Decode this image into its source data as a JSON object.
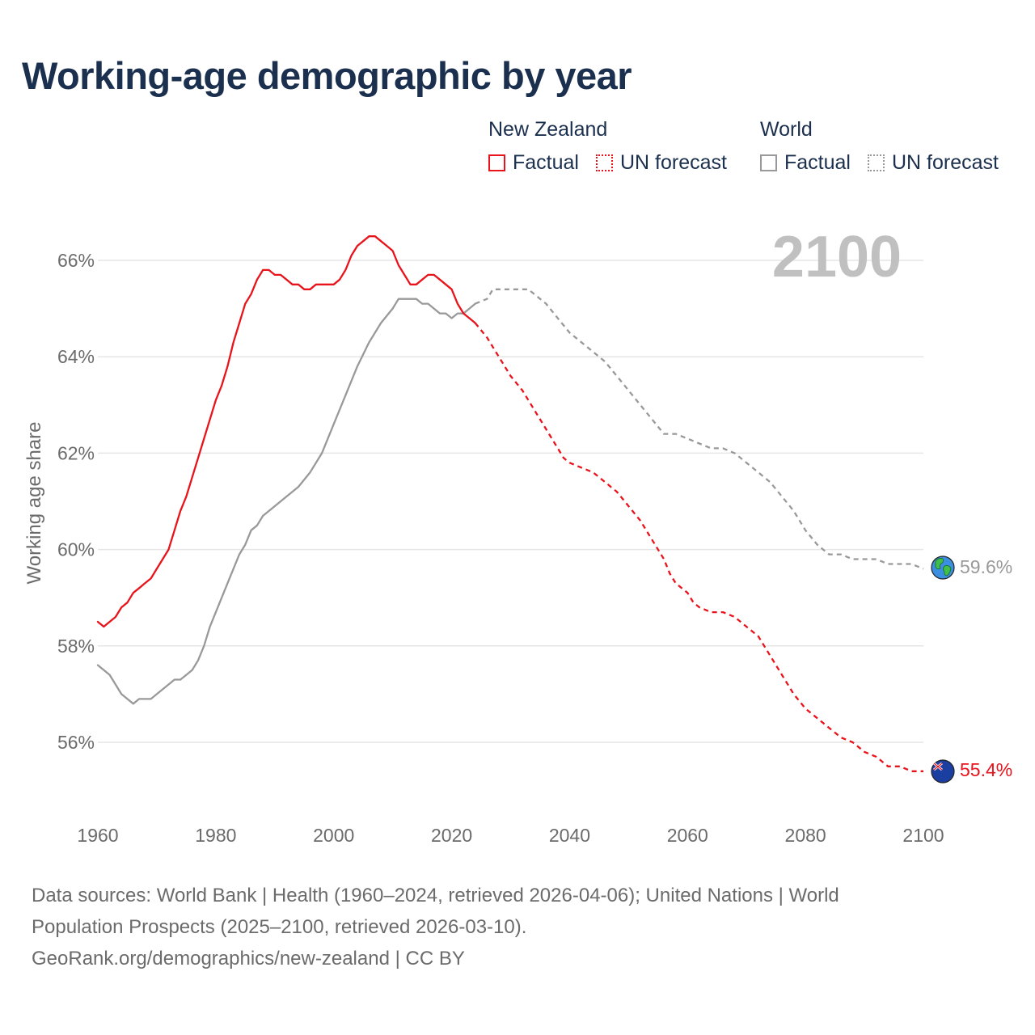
{
  "title": "Working-age demographic by year",
  "legend": {
    "groups": [
      {
        "name": "New Zealand",
        "items": [
          {
            "label": "Factual",
            "style": "solid"
          },
          {
            "label": "UN forecast",
            "style": "dotted"
          }
        ],
        "color": "#e8131b"
      },
      {
        "name": "World",
        "items": [
          {
            "label": "Factual",
            "style": "solid"
          },
          {
            "label": "UN forecast",
            "style": "dotted"
          }
        ],
        "color": "#999999"
      }
    ]
  },
  "year_display": "2100",
  "footer": {
    "line1": "Data sources: World Bank | Health (1960–2024, retrieved 2026-04-06); United Nations | World",
    "line2": "Population Prospects (2025–2100, retrieved 2026-03-10).",
    "line3": "GeoRank.org/demographics/new-zealand | CC BY"
  },
  "end_labels": {
    "nz": "55.4%",
    "world": "59.6%"
  },
  "colors": {
    "nz": "#e8131b",
    "world": "#999999",
    "title": "#1b2f4e",
    "grid": "#e6e6e6",
    "axis_text": "#6b6b6b"
  },
  "chart_data": {
    "type": "line",
    "title": "Working-age demographic by year",
    "xlabel": "",
    "ylabel": "Working age share",
    "xlim": [
      1960,
      2100
    ],
    "ylim": [
      54.6,
      67.0
    ],
    "xticks": [
      1960,
      1980,
      2000,
      2020,
      2040,
      2060,
      2080,
      2100
    ],
    "xtick_labels": [
      "1960",
      "1980",
      "2000",
      "2020",
      "2040",
      "2060",
      "2080",
      "2100"
    ],
    "yticks": [
      56,
      58,
      60,
      62,
      64,
      66
    ],
    "ytick_labels": [
      "56%",
      "58%",
      "60%",
      "62%",
      "64%",
      "66%"
    ],
    "grid": true,
    "legend_position": "top-right",
    "series": [
      {
        "name": "New Zealand",
        "segment": "Factual",
        "style": "solid",
        "x": [
          1960,
          1961,
          1962,
          1963,
          1964,
          1965,
          1966,
          1967,
          1968,
          1969,
          1970,
          1971,
          1972,
          1973,
          1974,
          1975,
          1976,
          1977,
          1978,
          1979,
          1980,
          1981,
          1982,
          1983,
          1984,
          1985,
          1986,
          1987,
          1988,
          1989,
          1990,
          1991,
          1992,
          1993,
          1994,
          1995,
          1996,
          1997,
          1998,
          1999,
          2000,
          2001,
          2002,
          2003,
          2004,
          2005,
          2006,
          2007,
          2008,
          2009,
          2010,
          2011,
          2012,
          2013,
          2014,
          2015,
          2016,
          2017,
          2018,
          2019,
          2020,
          2021,
          2022,
          2023,
          2024
        ],
        "values": [
          58.5,
          58.4,
          58.5,
          58.6,
          58.8,
          58.9,
          59.1,
          59.2,
          59.3,
          59.4,
          59.6,
          59.8,
          60.0,
          60.4,
          60.8,
          61.1,
          61.5,
          61.9,
          62.3,
          62.7,
          63.1,
          63.4,
          63.8,
          64.3,
          64.7,
          65.1,
          65.3,
          65.6,
          65.8,
          65.8,
          65.7,
          65.7,
          65.6,
          65.5,
          65.5,
          65.4,
          65.4,
          65.5,
          65.5,
          65.5,
          65.5,
          65.6,
          65.8,
          66.1,
          66.3,
          66.4,
          66.5,
          66.5,
          66.4,
          66.3,
          66.2,
          65.9,
          65.7,
          65.5,
          65.5,
          65.6,
          65.7,
          65.7,
          65.6,
          65.5,
          65.4,
          65.1,
          64.9,
          64.8,
          64.7
        ]
      },
      {
        "name": "New Zealand",
        "segment": "UN forecast",
        "style": "dashed",
        "x": [
          2024,
          2026,
          2028,
          2030,
          2032,
          2034,
          2036,
          2038,
          2039,
          2040,
          2042,
          2044,
          2046,
          2048,
          2050,
          2052,
          2054,
          2056,
          2057,
          2058,
          2060,
          2061,
          2062,
          2064,
          2066,
          2068,
          2070,
          2072,
          2074,
          2076,
          2078,
          2080,
          2082,
          2084,
          2086,
          2088,
          2090,
          2092,
          2094,
          2096,
          2098,
          2100
        ],
        "values": [
          64.7,
          64.4,
          64.0,
          63.6,
          63.3,
          62.9,
          62.5,
          62.1,
          61.9,
          61.8,
          61.7,
          61.6,
          61.4,
          61.2,
          60.9,
          60.6,
          60.2,
          59.8,
          59.5,
          59.3,
          59.1,
          58.9,
          58.8,
          58.7,
          58.7,
          58.6,
          58.4,
          58.2,
          57.8,
          57.4,
          57.0,
          56.7,
          56.5,
          56.3,
          56.1,
          56.0,
          55.8,
          55.7,
          55.5,
          55.5,
          55.4,
          55.4
        ]
      },
      {
        "name": "World",
        "segment": "Factual",
        "style": "solid",
        "x": [
          1960,
          1962,
          1964,
          1966,
          1967,
          1968,
          1969,
          1970,
          1972,
          1973,
          1974,
          1975,
          1976,
          1977,
          1978,
          1979,
          1980,
          1982,
          1984,
          1985,
          1986,
          1987,
          1988,
          1990,
          1992,
          1994,
          1996,
          1998,
          2000,
          2002,
          2004,
          2006,
          2008,
          2010,
          2011,
          2012,
          2013,
          2014,
          2015,
          2016,
          2017,
          2018,
          2019,
          2020,
          2021,
          2022,
          2023,
          2024
        ],
        "values": [
          57.6,
          57.4,
          57.0,
          56.8,
          56.9,
          56.9,
          56.9,
          57.0,
          57.2,
          57.3,
          57.3,
          57.4,
          57.5,
          57.7,
          58.0,
          58.4,
          58.7,
          59.3,
          59.9,
          60.1,
          60.4,
          60.5,
          60.7,
          60.9,
          61.1,
          61.3,
          61.6,
          62.0,
          62.6,
          63.2,
          63.8,
          64.3,
          64.7,
          65.0,
          65.2,
          65.2,
          65.2,
          65.2,
          65.1,
          65.1,
          65.0,
          64.9,
          64.9,
          64.8,
          64.9,
          64.9,
          65.0,
          65.1
        ]
      },
      {
        "name": "World",
        "segment": "UN forecast",
        "style": "dashed",
        "x": [
          2024,
          2026,
          2027,
          2028,
          2030,
          2032,
          2033,
          2034,
          2036,
          2038,
          2040,
          2042,
          2044,
          2046,
          2048,
          2050,
          2052,
          2054,
          2056,
          2058,
          2060,
          2062,
          2064,
          2066,
          2068,
          2070,
          2072,
          2074,
          2076,
          2078,
          2080,
          2082,
          2084,
          2086,
          2088,
          2090,
          2092,
          2094,
          2096,
          2098,
          2100
        ],
        "values": [
          65.1,
          65.2,
          65.4,
          65.4,
          65.4,
          65.4,
          65.4,
          65.3,
          65.1,
          64.8,
          64.5,
          64.3,
          64.1,
          63.9,
          63.6,
          63.3,
          63.0,
          62.7,
          62.4,
          62.4,
          62.3,
          62.2,
          62.1,
          62.1,
          62.0,
          61.8,
          61.6,
          61.4,
          61.1,
          60.8,
          60.4,
          60.1,
          59.9,
          59.9,
          59.8,
          59.8,
          59.8,
          59.7,
          59.7,
          59.7,
          59.6
        ]
      }
    ]
  }
}
